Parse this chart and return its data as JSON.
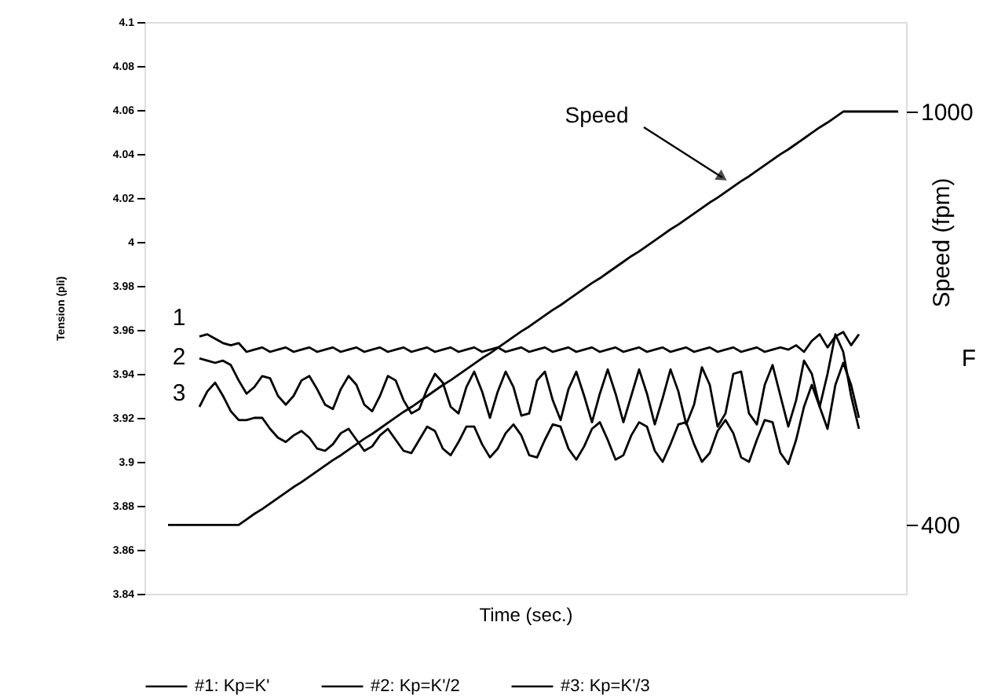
{
  "chart_data": {
    "type": "line",
    "xlabel": "Time (sec.)",
    "ylabel": "Tension (pli)",
    "y2label": "Speed (fpm)",
    "categories": [
      null,
      null,
      null,
      null,
      null,
      null,
      null,
      null,
      null,
      null,
      null,
      null,
      null,
      null,
      null,
      null,
      null,
      null,
      null,
      null,
      null,
      null,
      null,
      null,
      null,
      null,
      null,
      null,
      null,
      null,
      null,
      null,
      null,
      null,
      null,
      null,
      null,
      null,
      null,
      null,
      null,
      null,
      null,
      null,
      null,
      null,
      null,
      null,
      null,
      null,
      null,
      null,
      null,
      null,
      null,
      null,
      null,
      null,
      null,
      null,
      null,
      null,
      null,
      null,
      null,
      null,
      null,
      null,
      null,
      null,
      null,
      null,
      null,
      null,
      null,
      null,
      null,
      null,
      null,
      null,
      null,
      null,
      null,
      null,
      null,
      null,
      null,
      null,
      null,
      null,
      null,
      null,
      null,
      null,
      null,
      null,
      null,
      null
    ],
    "ylim": [
      3.84,
      4.1
    ],
    "yticks": [
      3.84,
      3.86,
      3.88,
      3.9,
      3.92,
      3.94,
      3.96,
      3.98,
      4,
      4.02,
      4.04,
      4.06,
      4.08,
      4.1
    ],
    "y2lim": [
      300,
      1130
    ],
    "y2ticks": [
      400,
      1000
    ],
    "grid": false,
    "legend": "bottom",
    "line_style": "solid",
    "marker": "none",
    "series": [
      {
        "name": "#1: Kp=K'",
        "color": "#000000",
        "values": [
          null,
          null,
          null,
          null,
          null,
          null,
          null,
          3.957,
          3.958,
          3.956,
          3.954,
          3.953,
          3.954,
          3.95,
          3.951,
          3.952,
          3.95,
          3.951,
          3.952,
          3.95,
          3.951,
          3.952,
          3.95,
          3.951,
          3.952,
          3.95,
          3.951,
          3.952,
          3.95,
          3.951,
          3.952,
          3.95,
          3.951,
          3.952,
          3.95,
          3.951,
          3.952,
          3.95,
          3.951,
          3.952,
          3.95,
          3.951,
          3.952,
          3.95,
          3.951,
          3.952,
          3.95,
          3.951,
          3.952,
          3.95,
          3.951,
          3.952,
          3.95,
          3.951,
          3.952,
          3.95,
          3.951,
          3.952,
          3.95,
          3.951,
          3.952,
          3.95,
          3.951,
          3.952,
          3.95,
          3.951,
          3.952,
          3.95,
          3.951,
          3.952,
          3.95,
          3.951,
          3.952,
          3.95,
          3.951,
          3.952,
          3.95,
          3.951,
          3.952,
          3.95,
          3.951,
          3.952,
          3.951,
          3.953,
          3.95,
          3.955,
          3.958,
          3.952,
          3.957,
          3.959,
          3.953,
          3.958,
          null,
          null,
          null,
          null,
          null,
          null
        ]
      },
      {
        "name": "#2: Kp=K'/2",
        "color": "#000000",
        "values": [
          null,
          null,
          null,
          null,
          null,
          null,
          null,
          3.947,
          3.946,
          3.945,
          3.946,
          3.944,
          3.937,
          3.931,
          3.934,
          3.939,
          3.938,
          3.93,
          3.926,
          3.93,
          3.937,
          3.939,
          3.933,
          3.926,
          3.924,
          3.933,
          3.939,
          3.935,
          3.926,
          3.923,
          3.93,
          3.939,
          3.937,
          3.928,
          3.922,
          3.924,
          3.933,
          3.94,
          3.936,
          3.925,
          3.922,
          3.934,
          3.941,
          3.932,
          3.92,
          3.932,
          3.941,
          3.934,
          3.921,
          3.922,
          3.937,
          3.941,
          3.928,
          3.919,
          3.933,
          3.941,
          3.93,
          3.918,
          3.931,
          3.942,
          3.931,
          3.918,
          3.93,
          3.942,
          3.931,
          3.917,
          3.929,
          3.942,
          3.932,
          3.917,
          3.926,
          3.943,
          3.935,
          3.916,
          3.922,
          3.94,
          3.941,
          3.922,
          3.917,
          3.935,
          3.944,
          3.93,
          3.916,
          3.928,
          3.946,
          3.94,
          3.925,
          3.94,
          3.958,
          3.95,
          3.93,
          3.915,
          null,
          null,
          null,
          null,
          null,
          null
        ]
      },
      {
        "name": "#3: Kp=K'/3",
        "color": "#000000",
        "values": [
          null,
          null,
          null,
          null,
          null,
          null,
          null,
          3.925,
          3.932,
          3.936,
          3.93,
          3.923,
          3.919,
          3.919,
          3.92,
          3.92,
          3.915,
          3.911,
          3.909,
          3.912,
          3.914,
          3.911,
          3.906,
          3.905,
          3.908,
          3.913,
          3.915,
          3.91,
          3.905,
          3.907,
          3.912,
          3.915,
          3.91,
          3.905,
          3.904,
          3.91,
          3.916,
          3.914,
          3.906,
          3.903,
          3.909,
          3.916,
          3.916,
          3.908,
          3.902,
          3.906,
          3.913,
          3.917,
          3.912,
          3.903,
          3.902,
          3.91,
          3.917,
          3.916,
          3.906,
          3.901,
          3.907,
          3.915,
          3.918,
          3.91,
          3.901,
          3.903,
          3.912,
          3.918,
          3.916,
          3.905,
          3.9,
          3.908,
          3.917,
          3.918,
          3.908,
          3.9,
          3.904,
          3.914,
          3.919,
          3.913,
          3.902,
          3.9,
          3.91,
          3.919,
          3.918,
          3.904,
          3.899,
          3.91,
          3.925,
          3.935,
          3.925,
          3.915,
          3.935,
          3.945,
          3.935,
          3.92,
          null,
          null,
          null,
          null,
          null,
          null
        ]
      },
      {
        "color": "#000000",
        "axis": "y2",
        "values": [
          null,
          null,
          null,
          400,
          400,
          400,
          400,
          400,
          400,
          400,
          400,
          400,
          400,
          408,
          416,
          423,
          431,
          439,
          447,
          455,
          462,
          470,
          478,
          486,
          494,
          501,
          509,
          517,
          525,
          532,
          540,
          548,
          556,
          564,
          571,
          579,
          587,
          595,
          603,
          610,
          618,
          626,
          634,
          642,
          649,
          657,
          665,
          673,
          681,
          688,
          696,
          704,
          712,
          719,
          727,
          735,
          743,
          751,
          758,
          766,
          774,
          782,
          790,
          797,
          805,
          813,
          821,
          829,
          836,
          844,
          852,
          860,
          868,
          875,
          883,
          891,
          899,
          906,
          914,
          922,
          930,
          938,
          945,
          953,
          961,
          969,
          977,
          984,
          992,
          1000,
          1000,
          1000,
          1000,
          1000,
          1000,
          1000,
          1000,
          null
        ]
      }
    ],
    "annotations": [
      "Speed",
      "1",
      "2",
      "3",
      "F"
    ]
  }
}
